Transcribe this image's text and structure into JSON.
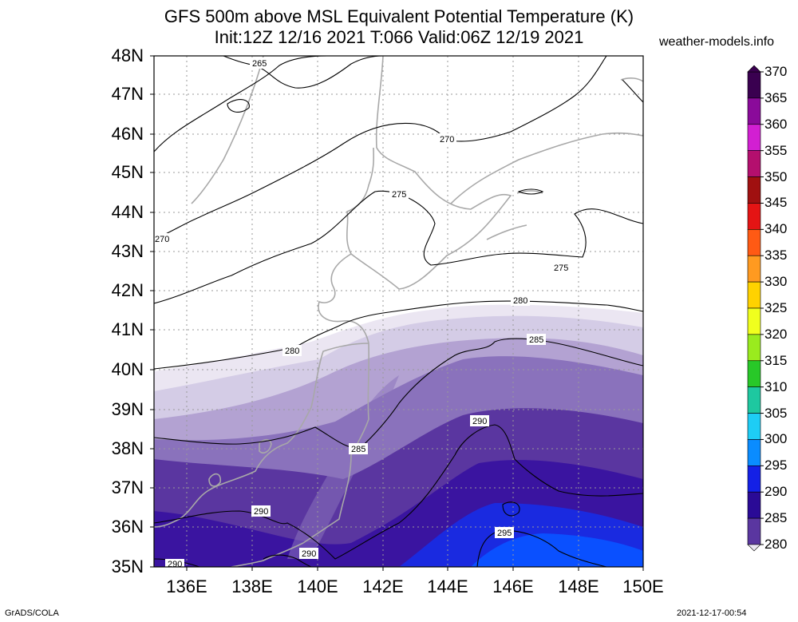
{
  "title": {
    "line1": "GFS 500m above MSL Equivalent Potential Temperature (K)",
    "line2": "Init:12Z 12/16 2021 T:066 Valid:06Z 12/19 2021"
  },
  "site": "weather-models.info",
  "lat_labels": [
    "48N",
    "47N",
    "46N",
    "45N",
    "44N",
    "43N",
    "42N",
    "41N",
    "40N",
    "39N",
    "38N",
    "37N",
    "36N",
    "35N"
  ],
  "lon_labels": [
    "136E",
    "138E",
    "140E",
    "142E",
    "144E",
    "146E",
    "148E",
    "150E"
  ],
  "colorbar": {
    "labels": [
      "370",
      "365",
      "360",
      "355",
      "350",
      "345",
      "340",
      "335",
      "330",
      "325",
      "320",
      "315",
      "310",
      "305",
      "300",
      "295",
      "290",
      "285",
      "280"
    ],
    "colors": [
      "#3a0050",
      "#8a0a9a",
      "#d21fd2",
      "#b40f6e",
      "#a01010",
      "#e41414",
      "#ff5a14",
      "#ff9a20",
      "#ffd200",
      "#f0ff1e",
      "#9aeb1e",
      "#28c828",
      "#1ec8a0",
      "#1ecdf5",
      "#0a8cff",
      "#1420e6",
      "#2a0a96",
      "#5a36a0",
      "#ebe6f2"
    ]
  },
  "contour_labels": [
    "265",
    "270",
    "270",
    "275",
    "275",
    "280",
    "280",
    "285",
    "285",
    "290",
    "290",
    "290",
    "290",
    "295"
  ],
  "footer": {
    "left": "GrADS/COLA",
    "right": "2021-12-17-00:54"
  }
}
